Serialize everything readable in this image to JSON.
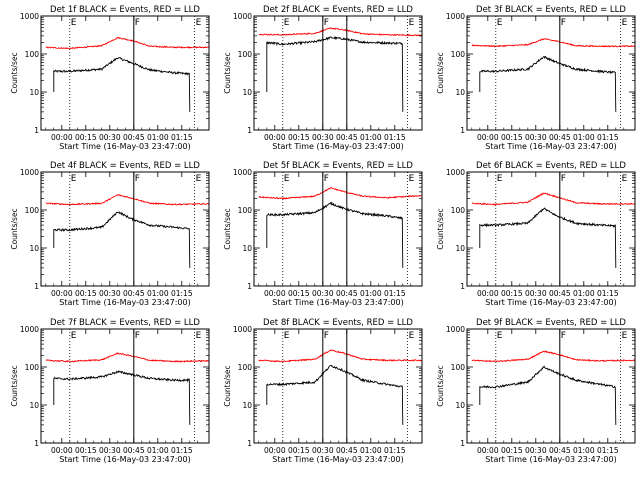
{
  "figure": {
    "xlabel": "Start Time (16-May-03 23:47:00)",
    "ylabel": "Counts/sec",
    "x_tick_labels": [
      "00:00",
      "00:15",
      "00:30",
      "00:45",
      "01:00",
      "01:15"
    ],
    "y_tick_labels": [
      "1",
      "10",
      "100",
      "1000"
    ],
    "marker_labels": [
      "E",
      "F",
      "E"
    ],
    "colors": {
      "events": "#000000",
      "lld": "#ff0000"
    }
  },
  "chart_data": [
    {
      "type": "line",
      "title": "Det 1f BLACK = Events, RED = LLD",
      "ylim": [
        1,
        1000
      ],
      "log_y": true,
      "x_range_min": [
        -13,
        92
      ],
      "markers_min": [
        5,
        45,
        83
      ],
      "series": [
        {
          "name": "Events",
          "color": "#000000",
          "x_min": [
            -5,
            5,
            25,
            35,
            43,
            55,
            70,
            80
          ],
          "y": [
            35,
            35,
            40,
            80,
            60,
            38,
            32,
            30
          ]
        },
        {
          "name": "LLD",
          "color": "#ff0000",
          "x_min": [
            -10,
            5,
            25,
            35,
            45,
            55,
            70,
            92
          ],
          "y": [
            150,
            140,
            165,
            270,
            220,
            160,
            150,
            150
          ]
        }
      ]
    },
    {
      "type": "line",
      "title": "Det 2f BLACK = Events, RED = LLD",
      "ylim": [
        1,
        1000
      ],
      "log_y": true,
      "x_range_min": [
        -13,
        92
      ],
      "markers_min": [
        5,
        30,
        45,
        83
      ],
      "series": [
        {
          "name": "Events",
          "color": "#000000",
          "x_min": [
            -5,
            5,
            25,
            35,
            43,
            55,
            70,
            80
          ],
          "y": [
            200,
            180,
            210,
            270,
            250,
            205,
            195,
            190
          ]
        },
        {
          "name": "LLD",
          "color": "#ff0000",
          "x_min": [
            -10,
            5,
            25,
            35,
            45,
            55,
            70,
            92
          ],
          "y": [
            330,
            320,
            350,
            480,
            420,
            340,
            320,
            310
          ]
        }
      ]
    },
    {
      "type": "line",
      "title": "Det 3f BLACK = Events, RED = LLD",
      "ylim": [
        1,
        1000
      ],
      "log_y": true,
      "x_range_min": [
        -13,
        92
      ],
      "markers_min": [
        5,
        45,
        83
      ],
      "series": [
        {
          "name": "Events",
          "color": "#000000",
          "x_min": [
            -5,
            5,
            25,
            35,
            43,
            55,
            70,
            80
          ],
          "y": [
            35,
            35,
            40,
            85,
            60,
            40,
            35,
            32
          ]
        },
        {
          "name": "LLD",
          "color": "#ff0000",
          "x_min": [
            -10,
            5,
            25,
            35,
            45,
            55,
            70,
            92
          ],
          "y": [
            170,
            160,
            175,
            250,
            210,
            165,
            160,
            160
          ]
        }
      ]
    },
    {
      "type": "line",
      "title": "Det 4f BLACK = Events, RED = LLD",
      "ylim": [
        1,
        1000
      ],
      "log_y": true,
      "x_range_min": [
        -13,
        92
      ],
      "markers_min": [
        5,
        45,
        83
      ],
      "series": [
        {
          "name": "Events",
          "color": "#000000",
          "x_min": [
            -5,
            5,
            25,
            35,
            43,
            55,
            70,
            80
          ],
          "y": [
            30,
            30,
            35,
            90,
            60,
            40,
            35,
            32
          ]
        },
        {
          "name": "LLD",
          "color": "#ff0000",
          "x_min": [
            -10,
            5,
            25,
            35,
            45,
            55,
            70,
            92
          ],
          "y": [
            150,
            140,
            150,
            250,
            200,
            150,
            140,
            145
          ]
        }
      ]
    },
    {
      "type": "line",
      "title": "Det 5f BLACK = Events, RED = LLD",
      "ylim": [
        1,
        1000
      ],
      "log_y": true,
      "x_range_min": [
        -13,
        92
      ],
      "markers_min": [
        5,
        30,
        45,
        83
      ],
      "series": [
        {
          "name": "Events",
          "color": "#000000",
          "x_min": [
            -5,
            5,
            25,
            35,
            43,
            55,
            70,
            80
          ],
          "y": [
            75,
            75,
            85,
            150,
            110,
            80,
            70,
            60
          ]
        },
        {
          "name": "LLD",
          "color": "#ff0000",
          "x_min": [
            -10,
            5,
            25,
            35,
            45,
            55,
            70,
            92
          ],
          "y": [
            220,
            200,
            230,
            380,
            290,
            230,
            210,
            240
          ]
        }
      ]
    },
    {
      "type": "line",
      "title": "Det 6f BLACK = Events, RED = LLD",
      "ylim": [
        1,
        1000
      ],
      "log_y": true,
      "x_range_min": [
        -13,
        92
      ],
      "markers_min": [
        5,
        45,
        83
      ],
      "series": [
        {
          "name": "Events",
          "color": "#000000",
          "x_min": [
            -5,
            5,
            25,
            35,
            43,
            55,
            70,
            80
          ],
          "y": [
            40,
            40,
            45,
            110,
            70,
            45,
            40,
            38
          ]
        },
        {
          "name": "LLD",
          "color": "#ff0000",
          "x_min": [
            -10,
            5,
            25,
            35,
            45,
            55,
            70,
            92
          ],
          "y": [
            150,
            140,
            160,
            280,
            210,
            155,
            145,
            145
          ]
        }
      ]
    },
    {
      "type": "line",
      "title": "Det 7f BLACK = Events, RED = LLD",
      "ylim": [
        1,
        1000
      ],
      "log_y": true,
      "x_range_min": [
        -13,
        92
      ],
      "markers_min": [
        5,
        45,
        83
      ],
      "series": [
        {
          "name": "Events",
          "color": "#000000",
          "x_min": [
            -5,
            5,
            25,
            35,
            43,
            55,
            70,
            80
          ],
          "y": [
            50,
            48,
            55,
            75,
            65,
            50,
            45,
            45
          ]
        },
        {
          "name": "LLD",
          "color": "#ff0000",
          "x_min": [
            -10,
            5,
            25,
            35,
            45,
            55,
            70,
            92
          ],
          "y": [
            150,
            140,
            155,
            230,
            190,
            150,
            140,
            145
          ]
        }
      ]
    },
    {
      "type": "line",
      "title": "Det 8f BLACK = Events, RED = LLD",
      "ylim": [
        1,
        1000
      ],
      "log_y": true,
      "x_range_min": [
        -13,
        92
      ],
      "markers_min": [
        5,
        30,
        45,
        83
      ],
      "series": [
        {
          "name": "Events",
          "color": "#000000",
          "x_min": [
            -5,
            5,
            25,
            35,
            43,
            55,
            70,
            80
          ],
          "y": [
            35,
            35,
            40,
            110,
            80,
            45,
            35,
            30
          ]
        },
        {
          "name": "LLD",
          "color": "#ff0000",
          "x_min": [
            -10,
            5,
            25,
            35,
            45,
            55,
            70,
            92
          ],
          "y": [
            150,
            140,
            160,
            280,
            220,
            160,
            150,
            150
          ]
        }
      ]
    },
    {
      "type": "line",
      "title": "Det 9f BLACK = Events, RED = LLD",
      "ylim": [
        1,
        1000
      ],
      "log_y": true,
      "x_range_min": [
        -13,
        92
      ],
      "markers_min": [
        5,
        45,
        83
      ],
      "series": [
        {
          "name": "Events",
          "color": "#000000",
          "x_min": [
            -5,
            5,
            25,
            35,
            43,
            55,
            70,
            80
          ],
          "y": [
            30,
            30,
            40,
            100,
            70,
            45,
            35,
            30
          ]
        },
        {
          "name": "LLD",
          "color": "#ff0000",
          "x_min": [
            -10,
            5,
            25,
            35,
            45,
            55,
            70,
            92
          ],
          "y": [
            150,
            140,
            160,
            260,
            210,
            155,
            145,
            150
          ]
        }
      ]
    }
  ]
}
